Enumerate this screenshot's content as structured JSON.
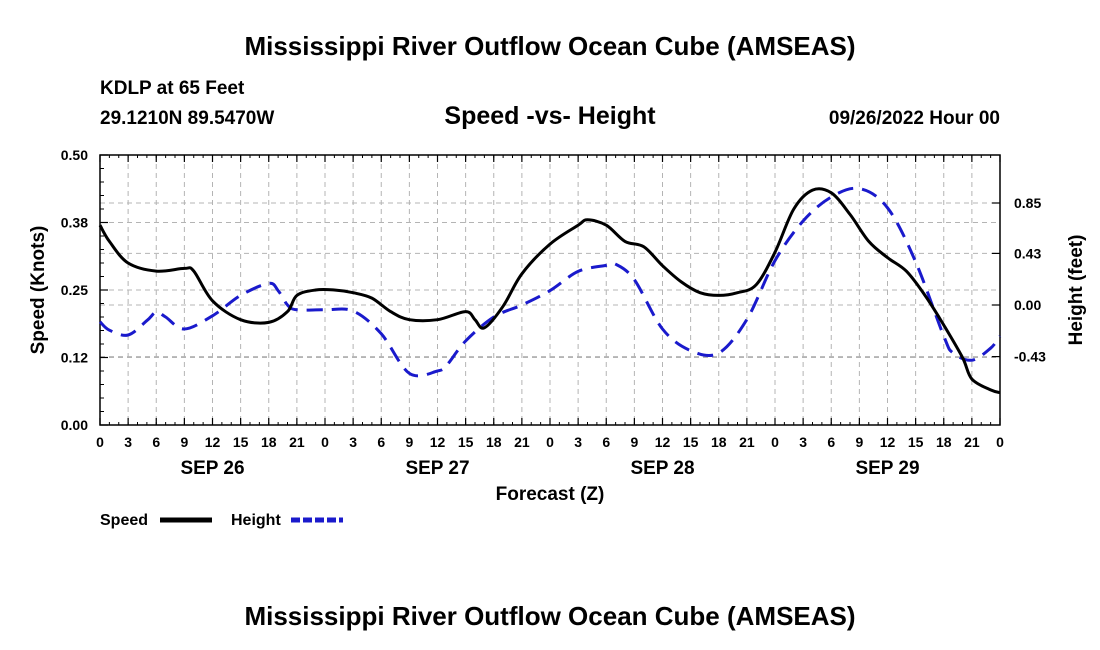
{
  "page_title": "Mississippi River Outflow Ocean Cube (AMSEAS)",
  "footer_title": "Mississippi River Outflow Ocean Cube (AMSEAS)",
  "station": {
    "name": "KDLP at 65 Feet",
    "coords": "29.1210N  89.5470W"
  },
  "chart_title": "Speed -vs- Height",
  "run_time": "09/26/2022 Hour 00",
  "legend": {
    "speed": "Speed",
    "height": "Height"
  },
  "chart_data": {
    "type": "line",
    "title": "Speed -vs- Height",
    "xlabel": "Forecast (Z)",
    "ylabel": "Speed (Knots)",
    "y2label": "Height (feet)",
    "x_range_hours": [
      0,
      96
    ],
    "x_tick_step_hours": 1.5,
    "x_tick_labels": [
      "0",
      "3",
      "6",
      "9",
      "12",
      "15",
      "18",
      "21",
      "0",
      "3",
      "6",
      "9",
      "12",
      "15",
      "18",
      "21",
      "0",
      "3",
      "6",
      "9",
      "12",
      "15",
      "18",
      "21",
      "0",
      "3",
      "6",
      "9",
      "12",
      "15",
      "18",
      "21",
      "0"
    ],
    "day_labels": [
      {
        "label": "SEP 26",
        "hour": 12
      },
      {
        "label": "SEP 27",
        "hour": 36
      },
      {
        "label": "SEP 28",
        "hour": 60
      },
      {
        "label": "SEP 29",
        "hour": 84
      }
    ],
    "ylim": [
      0,
      0.5
    ],
    "yticks": [
      "0.00",
      "0.12",
      "0.25",
      "0.38",
      "0.50"
    ],
    "y2lim": [
      -1.0,
      1.25
    ],
    "y2ticks": [
      {
        "label": "0.85",
        "value": 0.85
      },
      {
        "label": "0.43",
        "value": 0.43
      },
      {
        "label": "0.00",
        "value": 0.0
      },
      {
        "label": "-0.43",
        "value": -0.43
      }
    ],
    "grid": true,
    "series": [
      {
        "name": "Speed",
        "axis": "left",
        "color": "#000000",
        "style": "solid",
        "x": [
          0,
          1,
          3,
          6,
          9,
          10,
          12,
          15,
          18,
          20,
          21,
          23,
          25,
          27,
          29,
          31,
          33,
          36,
          39,
          40,
          41,
          43,
          45,
          48,
          51,
          52,
          54,
          56,
          58,
          60,
          62,
          64,
          66,
          68,
          70,
          72,
          74,
          76,
          78,
          80,
          82,
          84,
          86,
          88,
          90,
          92,
          93,
          95,
          96
        ],
        "y": [
          0.37,
          0.34,
          0.3,
          0.285,
          0.29,
          0.285,
          0.23,
          0.195,
          0.19,
          0.21,
          0.24,
          0.25,
          0.25,
          0.245,
          0.235,
          0.21,
          0.195,
          0.195,
          0.21,
          0.195,
          0.18,
          0.22,
          0.28,
          0.335,
          0.37,
          0.38,
          0.37,
          0.34,
          0.33,
          0.295,
          0.265,
          0.245,
          0.24,
          0.245,
          0.26,
          0.32,
          0.4,
          0.435,
          0.43,
          0.39,
          0.34,
          0.31,
          0.285,
          0.24,
          0.185,
          0.125,
          0.085,
          0.065,
          0.06
        ]
      },
      {
        "name": "Height",
        "axis": "right",
        "color": "#1a1acc",
        "style": "dashed",
        "x": [
          0,
          1,
          3,
          5,
          6,
          7,
          9,
          12,
          15,
          18,
          19,
          20,
          21,
          24,
          27,
          30,
          33,
          36,
          37,
          39,
          42,
          45,
          48,
          51,
          54,
          55,
          57,
          60,
          63,
          66,
          69,
          72,
          75,
          78,
          81,
          84,
          87,
          90,
          91,
          93,
          95,
          96
        ],
        "y": [
          -0.14,
          -0.21,
          -0.25,
          -0.13,
          -0.06,
          -0.1,
          -0.2,
          -0.09,
          0.08,
          0.18,
          0.12,
          0.0,
          -0.04,
          -0.04,
          -0.05,
          -0.24,
          -0.57,
          -0.55,
          -0.5,
          -0.3,
          -0.1,
          0.0,
          0.12,
          0.28,
          0.33,
          0.34,
          0.21,
          -0.2,
          -0.38,
          -0.4,
          -0.12,
          0.37,
          0.7,
          0.9,
          0.97,
          0.81,
          0.36,
          -0.26,
          -0.4,
          -0.46,
          -0.36,
          -0.26
        ]
      }
    ]
  }
}
